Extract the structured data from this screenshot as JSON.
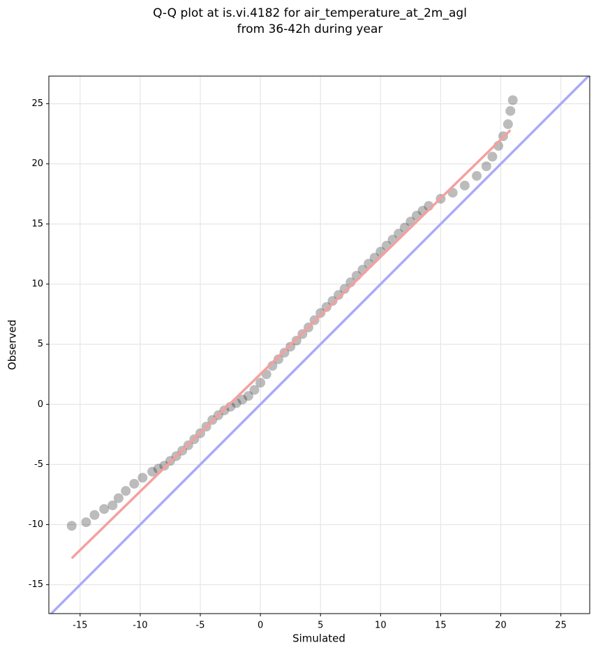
{
  "chart_data": {
    "type": "scatter",
    "title": [
      "Q-Q plot at is.vi.4182 for air_temperature_at_2m_agl",
      "from 36-42h during year"
    ],
    "xlabel": "Simulated",
    "ylabel": "Observed",
    "x": [
      -15.7,
      -14.5,
      -13.8,
      -13,
      -12.3,
      -11.8,
      -11.2,
      -10.5,
      -9.8,
      -9,
      -8.5,
      -8,
      -7.5,
      -7,
      -6.5,
      -6,
      -5.5,
      -5,
      -4.5,
      -4,
      -3.5,
      -3,
      -2.5,
      -2,
      -1.5,
      -1,
      -0.5,
      0,
      0.5,
      1,
      1.5,
      2,
      2.5,
      3,
      3.5,
      4,
      4.5,
      5,
      5.5,
      6,
      6.5,
      7,
      7.5,
      8,
      8.5,
      9,
      9.5,
      10,
      10.5,
      11,
      11.5,
      12,
      12.5,
      13,
      13.5,
      14,
      15,
      16,
      17,
      18,
      18.8,
      19.3,
      19.8,
      20.2,
      20.6,
      20.8,
      21
    ],
    "values": [
      -10.1,
      -9.8,
      -9.2,
      -8.7,
      -8.4,
      -7.8,
      -7.2,
      -6.6,
      -6.1,
      -5.6,
      -5.35,
      -5.1,
      -4.7,
      -4.3,
      -3.85,
      -3.4,
      -2.9,
      -2.4,
      -1.85,
      -1.3,
      -0.9,
      -0.5,
      -0.2,
      0.1,
      0.4,
      0.7,
      1.2,
      1.8,
      2.5,
      3.2,
      3.75,
      4.3,
      4.8,
      5.3,
      5.85,
      6.4,
      7,
      7.6,
      8.1,
      8.6,
      9.1,
      9.6,
      10.15,
      10.7,
      11.2,
      11.7,
      12.2,
      12.7,
      13.2,
      13.7,
      14.2,
      14.7,
      15.2,
      15.7,
      16.1,
      16.5,
      17.1,
      17.6,
      18.2,
      19,
      19.8,
      20.6,
      21.5,
      22.3,
      23.3,
      24.4,
      25.3
    ],
    "color": "#222222",
    "alpha": 0.3,
    "lines": [
      {
        "x": [
          -15.7,
          20.8
        ],
        "values": [
          -12.8,
          22.8
        ],
        "color": "#f4a0a0"
      },
      {
        "x": [
          -17.6,
          27.4
        ],
        "values": [
          -17.6,
          27.4
        ],
        "color": "#aaaaf8"
      }
    ],
    "xlim": [
      -17.6,
      27.4
    ],
    "ylim": [
      -17.4,
      27.3
    ],
    "xticks": [
      -15,
      -10,
      -5,
      0,
      5,
      10,
      15,
      20,
      25
    ],
    "yticks": [
      -15,
      -10,
      -5,
      0,
      5,
      10,
      15,
      20,
      25
    ],
    "grid": true
  }
}
